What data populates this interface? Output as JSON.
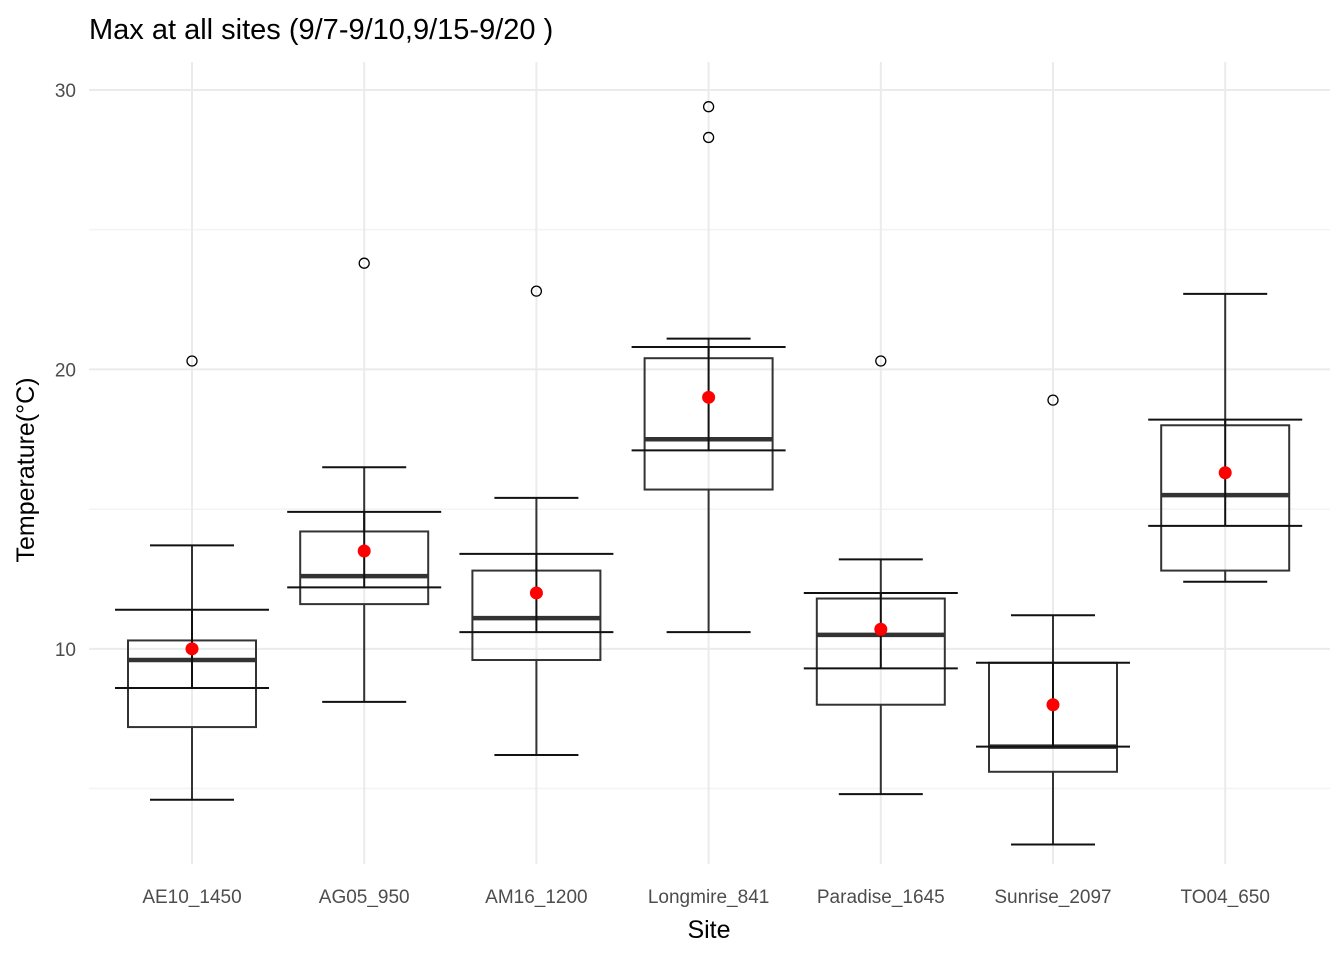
{
  "chart_data": {
    "type": "boxplot",
    "title": "Max at all sites (9/7-9/10,9/15-9/20 )",
    "xlabel": "Site",
    "ylabel": "Temperature(°C)",
    "ylim": [
      2.3,
      31.0
    ],
    "yticks": [
      10,
      20,
      30
    ],
    "grid": true,
    "categories": [
      "AE10_1450",
      "AG05_950",
      "AM16_1200",
      "Longmire_841",
      "Paradise_1645",
      "Sunrise_2097",
      "TO04_650"
    ],
    "series": [
      {
        "category": "AE10_1450",
        "whisker_low": 4.6,
        "q1": 7.2,
        "median": 9.6,
        "q3": 10.3,
        "whisker_high": 13.7,
        "outliers": [
          20.3
        ],
        "mean": 10.0,
        "err_low": 8.6,
        "err_high": 11.4
      },
      {
        "category": "AG05_950",
        "whisker_low": 8.1,
        "q1": 11.6,
        "median": 12.6,
        "q3": 14.2,
        "whisker_high": 16.5,
        "outliers": [
          23.8
        ],
        "mean": 13.5,
        "err_low": 12.2,
        "err_high": 14.9
      },
      {
        "category": "AM16_1200",
        "whisker_low": 6.2,
        "q1": 9.6,
        "median": 11.1,
        "q3": 12.8,
        "whisker_high": 15.4,
        "outliers": [
          22.8
        ],
        "mean": 12.0,
        "err_low": 10.6,
        "err_high": 13.4
      },
      {
        "category": "Longmire_841",
        "whisker_low": 10.6,
        "q1": 15.7,
        "median": 17.5,
        "q3": 20.4,
        "whisker_high": 21.1,
        "outliers": [
          28.3,
          29.4
        ],
        "mean": 19.0,
        "err_low": 17.1,
        "err_high": 20.8
      },
      {
        "category": "Paradise_1645",
        "whisker_low": 4.8,
        "q1": 8.0,
        "median": 10.5,
        "q3": 11.8,
        "whisker_high": 13.2,
        "outliers": [
          20.3
        ],
        "mean": 10.7,
        "err_low": 9.3,
        "err_high": 12.0
      },
      {
        "category": "Sunrise_2097",
        "whisker_low": 3.0,
        "q1": 5.6,
        "median": 6.5,
        "q3": 9.5,
        "whisker_high": 11.2,
        "outliers": [
          18.9
        ],
        "mean": 8.0,
        "err_low": 6.5,
        "err_high": 9.5
      },
      {
        "category": "TO04_650",
        "whisker_low": 12.4,
        "q1": 12.8,
        "median": 15.5,
        "q3": 18.0,
        "whisker_high": 22.7,
        "outliers": [],
        "mean": 16.3,
        "err_low": 14.4,
        "err_high": 18.2
      }
    ],
    "colors": {
      "box": "#333333",
      "whisker": "#111111",
      "mean_point": "#ff0000",
      "grid_major": "#ebebeb",
      "grid_minor": "#f3f3f3"
    }
  }
}
